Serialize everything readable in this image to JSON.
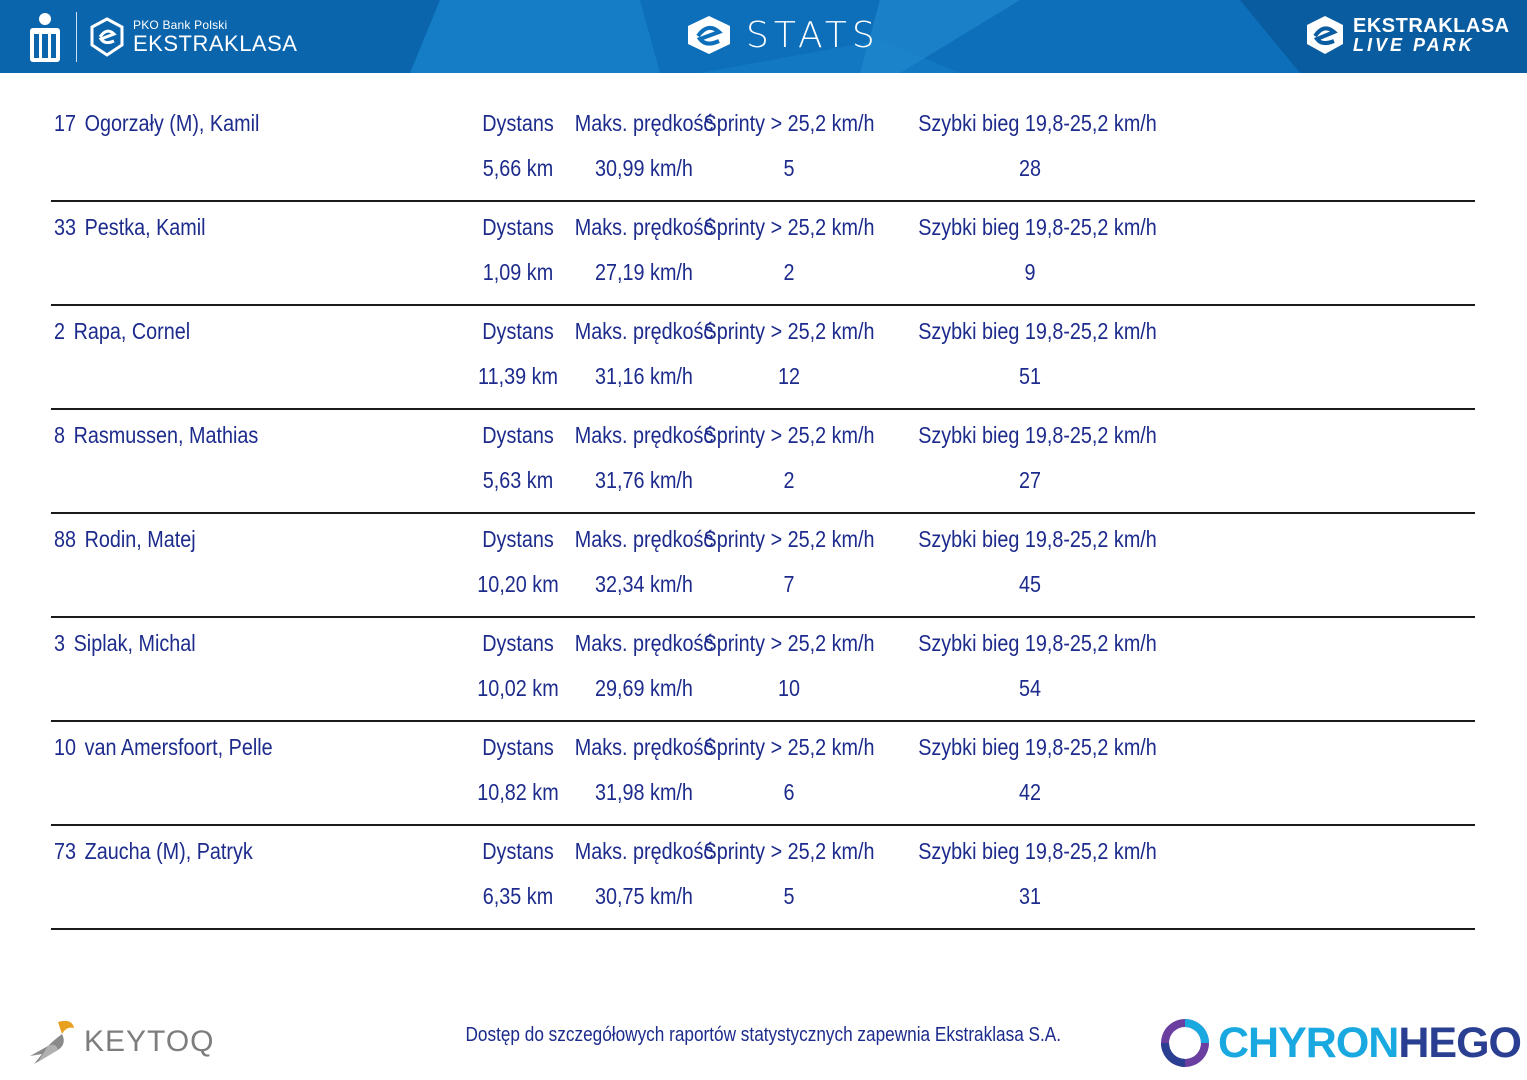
{
  "header": {
    "left_brand_small": "PKO Bank Polski",
    "left_brand_big": "EKSTRAKLASA",
    "title": "STATS",
    "right_brand_line1": "EKSTRAKLASA",
    "right_brand_line2": "LIVE PARK",
    "colors": {
      "bar": "#0d6fba",
      "bar_light": "#1b88d0",
      "bar_dark": "#0a5ca0"
    }
  },
  "labels": {
    "distance": "Dystans",
    "max_speed": "Maks. prędkość",
    "sprints": "Sprinty > 25,2 km/h",
    "fast_run": "Szybki bieg 19,8-25,2 km/h"
  },
  "players": [
    {
      "number": "17",
      "name": "Ogorzały (M), Kamil",
      "distance": "5,66 km",
      "max_speed": "30,99 km/h",
      "sprints": "5",
      "fast_run": "28"
    },
    {
      "number": "33",
      "name": "Pestka, Kamil",
      "distance": "1,09 km",
      "max_speed": "27,19 km/h",
      "sprints": "2",
      "fast_run": "9"
    },
    {
      "number": "2",
      "name": "Rapa, Cornel",
      "distance": "11,39 km",
      "max_speed": "31,16 km/h",
      "sprints": "12",
      "fast_run": "51"
    },
    {
      "number": "8",
      "name": "Rasmussen, Mathias",
      "distance": "5,63 km",
      "max_speed": "31,76 km/h",
      "sprints": "2",
      "fast_run": "27"
    },
    {
      "number": "88",
      "name": "Rodin, Matej",
      "distance": "10,20 km",
      "max_speed": "32,34 km/h",
      "sprints": "7",
      "fast_run": "45"
    },
    {
      "number": "3",
      "name": "Siplak, Michal",
      "distance": "10,02 km",
      "max_speed": "29,69 km/h",
      "sprints": "10",
      "fast_run": "54"
    },
    {
      "number": "10",
      "name": "van Amersfoort, Pelle",
      "distance": "10,82 km",
      "max_speed": "31,98 km/h",
      "sprints": "6",
      "fast_run": "42"
    },
    {
      "number": "73",
      "name": "Zaucha (M), Patryk",
      "distance": "6,35 km",
      "max_speed": "30,75 km/h",
      "sprints": "5",
      "fast_run": "31"
    }
  ],
  "footer": {
    "note": "Dostęp do szczegółowych raportów statystycznych zapewnia Ekstraklasa S.A.",
    "left_logo": "KEYTOQ",
    "right_logo_part1": "CHYRON",
    "right_logo_part2": "HEGO"
  },
  "icons": [
    "pko-logo-icon",
    "ekstraklasa-shield-icon",
    "stats-e-icon",
    "live-park-e-icon",
    "keytoq-bird-icon",
    "chyronhego-swirl-icon"
  ]
}
